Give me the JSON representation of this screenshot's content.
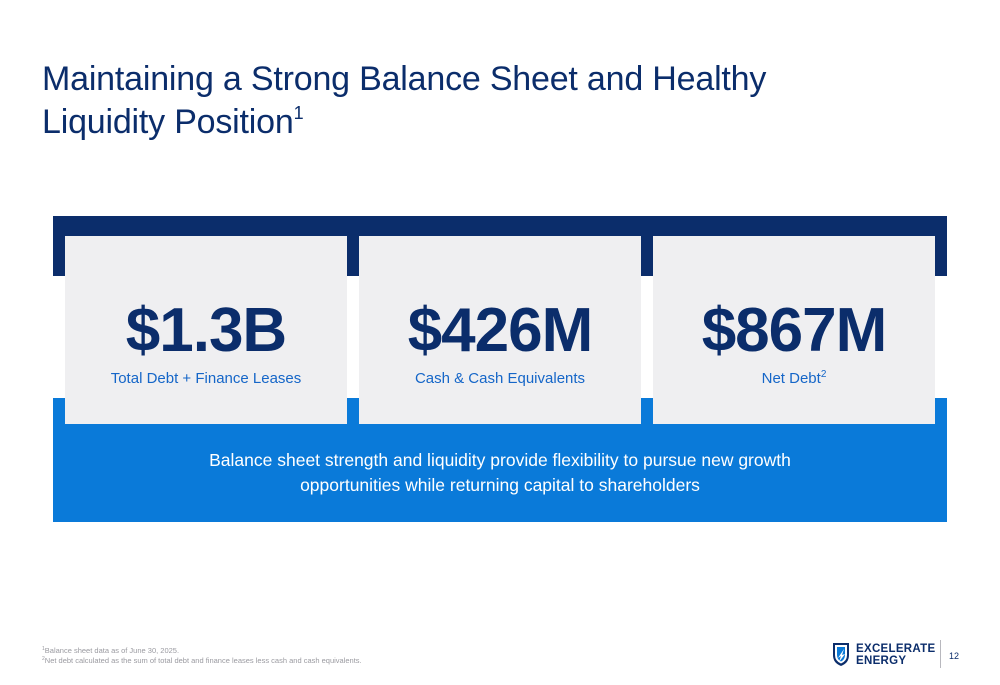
{
  "title": {
    "line1": "Maintaining a Strong Balance Sheet and Healthy",
    "line2": "Liquidity Position",
    "footnote_mark": "1"
  },
  "metrics": [
    {
      "value": "$1.3B",
      "label": "Total Debt + Finance Leases",
      "sup": ""
    },
    {
      "value": "$426M",
      "label": "Cash & Cash Equivalents",
      "sup": ""
    },
    {
      "value": "$867M",
      "label": "Net Debt",
      "sup": "2"
    }
  ],
  "tagline": {
    "line1": "Balance sheet strength and liquidity provide flexibility to pursue new growth",
    "line2": "opportunities while returning capital to shareholders"
  },
  "footnotes": [
    {
      "mark": "1",
      "text": "Balance sheet data as of June 30, 2025."
    },
    {
      "mark": "2",
      "text": "Net debt calculated as the sum of total debt and finance leases less cash and cash equivalents."
    }
  ],
  "logo": {
    "line1": "EXCELERATE",
    "line2": "ENERGY",
    "icon": "excelerate-shield-icon"
  },
  "page_number": "12",
  "colors": {
    "navy": "#0b2d6b",
    "blue": "#0a7ad9",
    "card": "#efeff1",
    "label": "#1566c8"
  }
}
